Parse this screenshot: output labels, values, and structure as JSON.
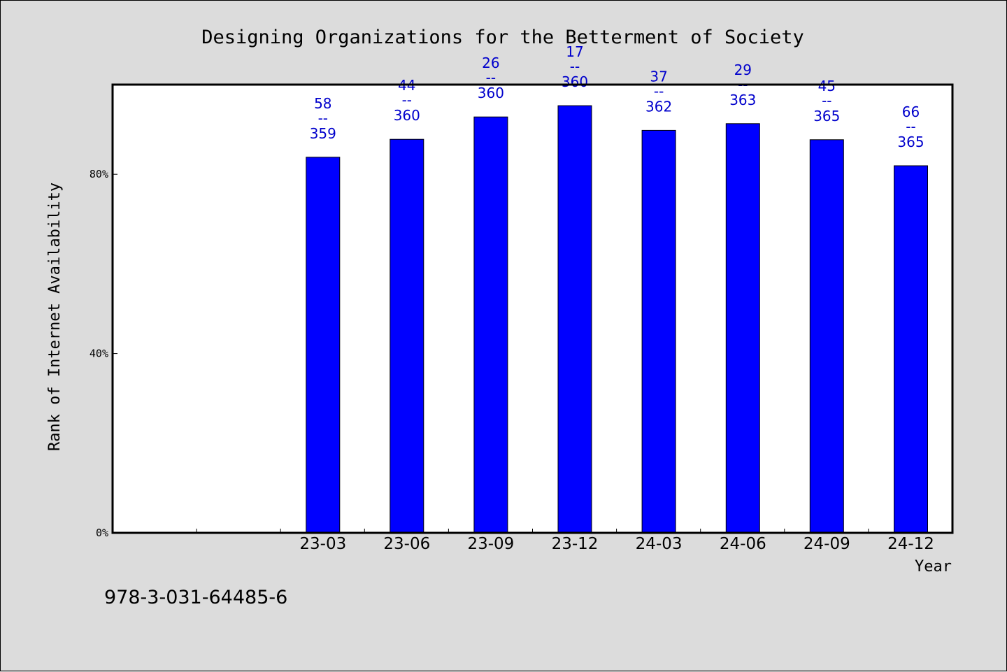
{
  "chart_data": {
    "type": "bar",
    "title": "Designing Organizations for the Betterment of Society",
    "xlabel": "Year",
    "ylabel": "Rank of Internet Availability",
    "categories": [
      "",
      "",
      "23-03",
      "23-06",
      "23-09",
      "23-12",
      "24-03",
      "24-06",
      "24-09",
      "24-12"
    ],
    "values": [
      null,
      null,
      83.8,
      87.8,
      92.8,
      95.3,
      89.8,
      91.3,
      87.7,
      81.9
    ],
    "data_labels": [
      null,
      null,
      {
        "top": "58",
        "sep": "--",
        "bottom": "359"
      },
      {
        "top": "44",
        "sep": "--",
        "bottom": "360"
      },
      {
        "top": "26",
        "sep": "--",
        "bottom": "360"
      },
      {
        "top": "17",
        "sep": "--",
        "bottom": "360"
      },
      {
        "top": "37",
        "sep": "--",
        "bottom": "362"
      },
      {
        "top": "29",
        "sep": "--",
        "bottom": "363"
      },
      {
        "top": "45",
        "sep": "--",
        "bottom": "365"
      },
      {
        "top": "66",
        "sep": "--",
        "bottom": "365"
      }
    ],
    "yticks": [
      {
        "value": 0,
        "label": "0%"
      },
      {
        "value": 40,
        "label": "40%"
      },
      {
        "value": 80,
        "label": "80%"
      }
    ],
    "ylim": [
      0,
      100
    ],
    "grid": false,
    "bar_color": "#0000ff",
    "label_color": "#0000cc",
    "plot_background": "#ffffff",
    "page_background": "#dcdcdc"
  },
  "footer": {
    "isbn": "978-3-031-64485-6"
  }
}
